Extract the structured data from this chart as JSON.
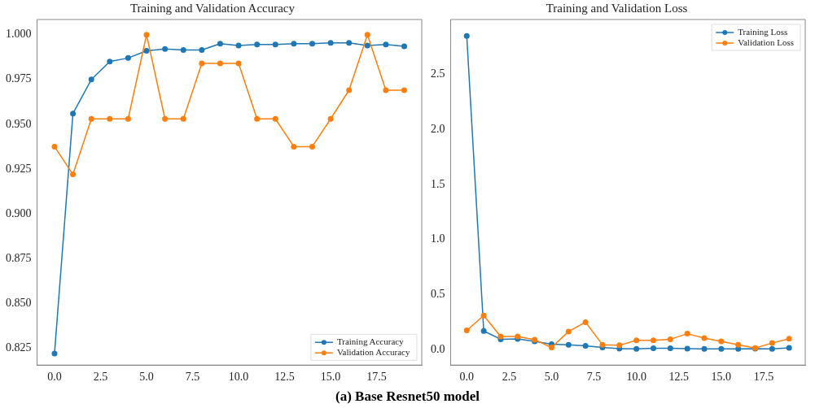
{
  "chart_data": [
    {
      "type": "line",
      "title": "Training and Validation Accuracy",
      "x": [
        0,
        1,
        2,
        3,
        4,
        5,
        6,
        7,
        8,
        9,
        10,
        11,
        12,
        13,
        14,
        15,
        16,
        17,
        18,
        19
      ],
      "series": [
        {
          "name": "Training Accuracy",
          "color": "#1f77b4",
          "values": [
            0.822,
            0.956,
            0.975,
            0.985,
            0.987,
            0.991,
            0.992,
            0.9915,
            0.9915,
            0.995,
            0.994,
            0.9945,
            0.9945,
            0.995,
            0.995,
            0.9955,
            0.9955,
            0.994,
            0.9945,
            0.9935
          ]
        },
        {
          "name": "Validation Accuracy",
          "color": "#ff7f0e",
          "values": [
            0.9375,
            0.922,
            0.953,
            0.953,
            0.953,
            1.0,
            0.953,
            0.953,
            0.984,
            0.984,
            0.984,
            0.953,
            0.953,
            0.9375,
            0.9375,
            0.953,
            0.969,
            1.0,
            0.969,
            0.969
          ]
        }
      ],
      "xlim": [
        -0.95,
        19.95
      ],
      "xticks": [
        {
          "value": 0,
          "label": "0.0"
        },
        {
          "value": 2.5,
          "label": "2.5"
        },
        {
          "value": 5,
          "label": "5.0"
        },
        {
          "value": 7.5,
          "label": "7.5"
        },
        {
          "value": 10,
          "label": "10.0"
        },
        {
          "value": 12.5,
          "label": "12.5"
        },
        {
          "value": 15,
          "label": "15.0"
        },
        {
          "value": 17.5,
          "label": "17.5"
        }
      ],
      "ylim": [
        0.8155,
        1.0085
      ],
      "yticks": [
        {
          "value": 0.825,
          "label": "0.825"
        },
        {
          "value": 0.85,
          "label": "0.850"
        },
        {
          "value": 0.875,
          "label": "0.875"
        },
        {
          "value": 0.9,
          "label": "0.900"
        },
        {
          "value": 0.925,
          "label": "0.925"
        },
        {
          "value": 0.95,
          "label": "0.950"
        },
        {
          "value": 0.975,
          "label": "0.975"
        },
        {
          "value": 1.0,
          "label": "1.000"
        }
      ],
      "legend": "bottom right",
      "marker": "circle",
      "line_style": "solid",
      "grid": false,
      "annotations": [
        "(a) Base Resnet50 model"
      ]
    },
    {
      "type": "line",
      "title": "Training and Validation Loss",
      "x": [
        0,
        1,
        2,
        3,
        4,
        5,
        6,
        7,
        8,
        9,
        10,
        11,
        12,
        13,
        14,
        15,
        16,
        17,
        18,
        19
      ],
      "series": [
        {
          "name": "Training Loss",
          "color": "#1f77b4",
          "values": [
            2.85,
            0.17,
            0.095,
            0.097,
            0.075,
            0.05,
            0.045,
            0.035,
            0.02,
            0.01,
            0.008,
            0.012,
            0.012,
            0.01,
            0.007,
            0.007,
            0.007,
            0.01,
            0.008,
            0.017
          ]
        },
        {
          "name": "Validation Loss",
          "color": "#ff7f0e",
          "values": [
            0.175,
            0.31,
            0.12,
            0.12,
            0.09,
            0.02,
            0.165,
            0.25,
            0.045,
            0.04,
            0.085,
            0.085,
            0.095,
            0.145,
            0.105,
            0.075,
            0.045,
            0.015,
            0.06,
            0.1
          ]
        }
      ],
      "xlim": [
        -0.95,
        19.95
      ],
      "xticks": [
        {
          "value": 0,
          "label": "0.0"
        },
        {
          "value": 2.5,
          "label": "2.5"
        },
        {
          "value": 5,
          "label": "5.0"
        },
        {
          "value": 7.5,
          "label": "7.5"
        },
        {
          "value": 10,
          "label": "10.0"
        },
        {
          "value": 12.5,
          "label": "12.5"
        },
        {
          "value": 15,
          "label": "15.0"
        },
        {
          "value": 17.5,
          "label": "17.5"
        }
      ],
      "ylim": [
        -0.14,
        3.0
      ],
      "yticks": [
        {
          "value": 0,
          "label": "0.0"
        },
        {
          "value": 0.5,
          "label": "0.5"
        },
        {
          "value": 1.0,
          "label": "1.0"
        },
        {
          "value": 1.5,
          "label": "1.5"
        },
        {
          "value": 2.0,
          "label": "2.0"
        },
        {
          "value": 2.5,
          "label": "2.5"
        }
      ],
      "legend": "top right",
      "marker": "circle",
      "line_style": "solid",
      "grid": false
    }
  ]
}
